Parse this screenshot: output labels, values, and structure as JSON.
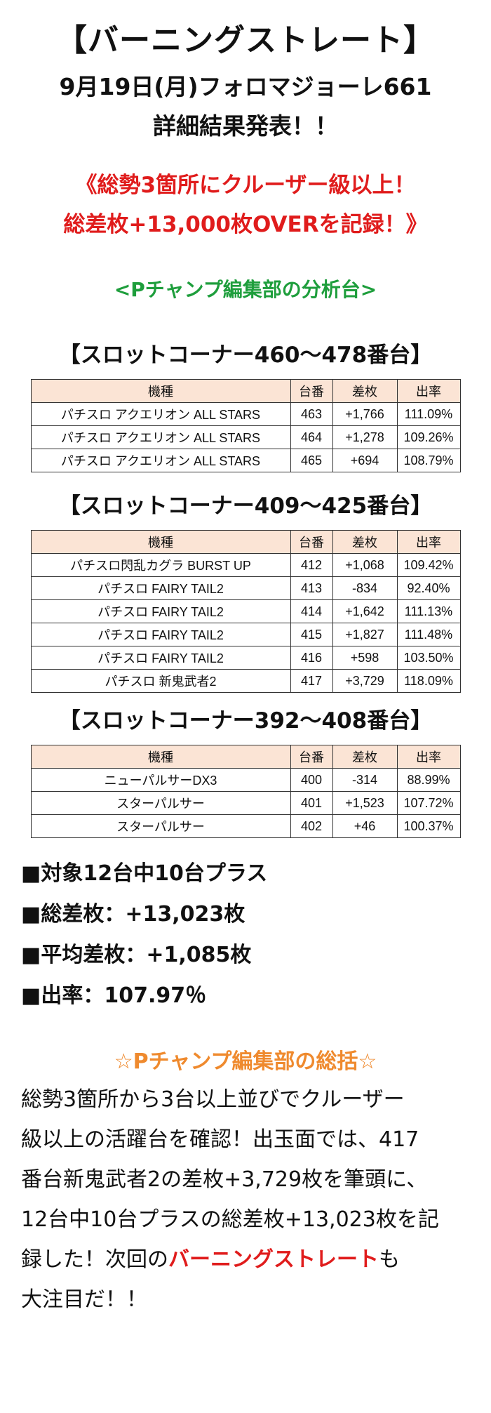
{
  "header": {
    "title": "【バーニングストレート】",
    "subtitle": "9月19日(月)フォロマジョーレ661",
    "subtitle2": "詳細結果発表！！"
  },
  "headline": {
    "line1": "《総勢3箇所にクルーザー級以上！",
    "line2": "総差枚+13,000枚OVERを記録！》"
  },
  "analysis_label": "<Pチャンプ編集部の分析台>",
  "columns": [
    "機種",
    "台番",
    "差枚",
    "出率"
  ],
  "sections": [
    {
      "title": "【スロットコーナー460～478番台】",
      "rows": [
        [
          "パチスロ アクエリオン ALL STARS",
          "463",
          "+1,766",
          "111.09%"
        ],
        [
          "パチスロ アクエリオン ALL STARS",
          "464",
          "+1,278",
          "109.26%"
        ],
        [
          "パチスロ アクエリオン ALL STARS",
          "465",
          "+694",
          "108.79%"
        ]
      ]
    },
    {
      "title": "【スロットコーナー409～425番台】",
      "rows": [
        [
          "パチスロ閃乱カグラ BURST UP",
          "412",
          "+1,068",
          "109.42%"
        ],
        [
          "パチスロ FAIRY TAIL2",
          "413",
          "-834",
          "92.40%"
        ],
        [
          "パチスロ FAIRY TAIL2",
          "414",
          "+1,642",
          "111.13%"
        ],
        [
          "パチスロ FAIRY TAIL2",
          "415",
          "+1,827",
          "111.48%"
        ],
        [
          "パチスロ FAIRY TAIL2",
          "416",
          "+598",
          "103.50%"
        ],
        [
          "パチスロ 新鬼武者2",
          "417",
          "+3,729",
          "118.09%"
        ]
      ]
    },
    {
      "title": "【スロットコーナー392～408番台】",
      "rows": [
        [
          "ニューパルサーDX3",
          "400",
          "-314",
          "88.99%"
        ],
        [
          "スターパルサー",
          "401",
          "+1,523",
          "107.72%"
        ],
        [
          "スターパルサー",
          "402",
          "+46",
          "100.37%"
        ]
      ]
    }
  ],
  "stats": [
    "■対象12台中10台プラス",
    "■総差枚：+13,023枚",
    "■平均差枚：+1,085枚",
    "■出率：107.97％"
  ],
  "summary": {
    "title": "☆Pチャンプ編集部の総括☆",
    "lines": [
      "総勢3箇所から3台以上並びでクルーザー",
      "級以上の活躍台を確認！出玉面では、417",
      "番台新鬼武者2の差枚+3,729枚を筆頭に、",
      "12台中10台プラスの総差枚+13,023枚を記"
    ],
    "line5_pre": "録した！次回の",
    "line5_highlight": "バーニングストレート",
    "line5_post": "も",
    "line6": "大注目だ！！"
  },
  "colors": {
    "headline_red": "#e01c1c",
    "analysis_green": "#1e9e3c",
    "summary_orange": "#ef8a2e",
    "table_header_bg": "#fbe4d5"
  }
}
